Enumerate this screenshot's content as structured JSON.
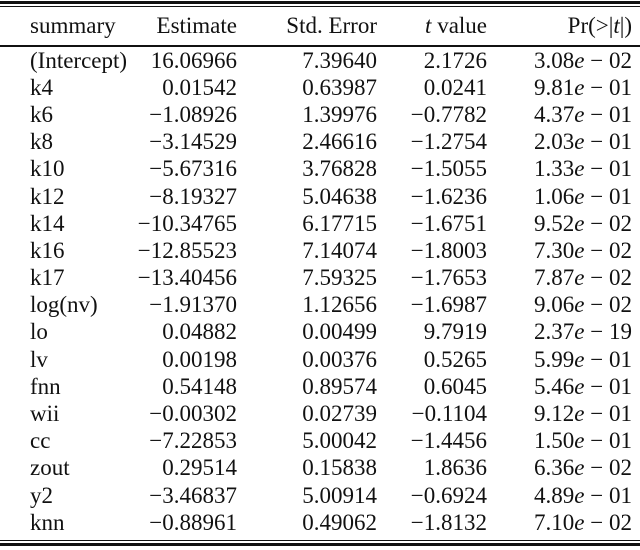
{
  "table": {
    "columns": [
      {
        "key": "summary",
        "label": "summary"
      },
      {
        "key": "estimate",
        "label": "Estimate"
      },
      {
        "key": "std_error",
        "label": "Std. Error"
      },
      {
        "key": "t_value",
        "label": "t value"
      },
      {
        "key": "pr",
        "label": "Pr(>|t|)"
      }
    ],
    "rows": [
      [
        "(Intercept)",
        "16.06966",
        "7.39640",
        "2.1726",
        "3.08e − 02"
      ],
      [
        "k4",
        "0.01542",
        "0.63987",
        "0.0241",
        "9.81e − 01"
      ],
      [
        "k6",
        "−1.08926",
        "1.39976",
        "−0.7782",
        "4.37e − 01"
      ],
      [
        "k8",
        "−3.14529",
        "2.46616",
        "−1.2754",
        "2.03e − 01"
      ],
      [
        "k10",
        "−5.67316",
        "3.76828",
        "−1.5055",
        "1.33e − 01"
      ],
      [
        "k12",
        "−8.19327",
        "5.04638",
        "−1.6236",
        "1.06e − 01"
      ],
      [
        "k14",
        "−10.34765",
        "6.17715",
        "−1.6751",
        "9.52e − 02"
      ],
      [
        "k16",
        "−12.85523",
        "7.14074",
        "−1.8003",
        "7.30e − 02"
      ],
      [
        "k17",
        "−13.40456",
        "7.59325",
        "−1.7653",
        "7.87e − 02"
      ],
      [
        "log(nv)",
        "−1.91370",
        "1.12656",
        "−1.6987",
        "9.06e − 02"
      ],
      [
        "lo",
        "0.04882",
        "0.00499",
        "9.7919",
        "2.37e − 19"
      ],
      [
        "lv",
        "0.00198",
        "0.00376",
        "0.5265",
        "5.99e − 01"
      ],
      [
        "fnn",
        "0.54148",
        "0.89574",
        "0.6045",
        "5.46e − 01"
      ],
      [
        "wii",
        "−0.00302",
        "0.02739",
        "−0.1104",
        "9.12e − 01"
      ],
      [
        "cc",
        "−7.22853",
        "5.00042",
        "−1.4456",
        "1.50e − 01"
      ],
      [
        "zout",
        "0.29514",
        "0.15838",
        "1.8636",
        "6.36e − 02"
      ],
      [
        "y2",
        "−3.46837",
        "5.00914",
        "−0.6924",
        "4.89e − 01"
      ],
      [
        "knn",
        "−0.88961",
        "0.49062",
        "−1.8132",
        "7.10e − 02"
      ]
    ]
  },
  "colors": {
    "text": "#111111",
    "rule": "#111111",
    "background": "#ffffff"
  }
}
